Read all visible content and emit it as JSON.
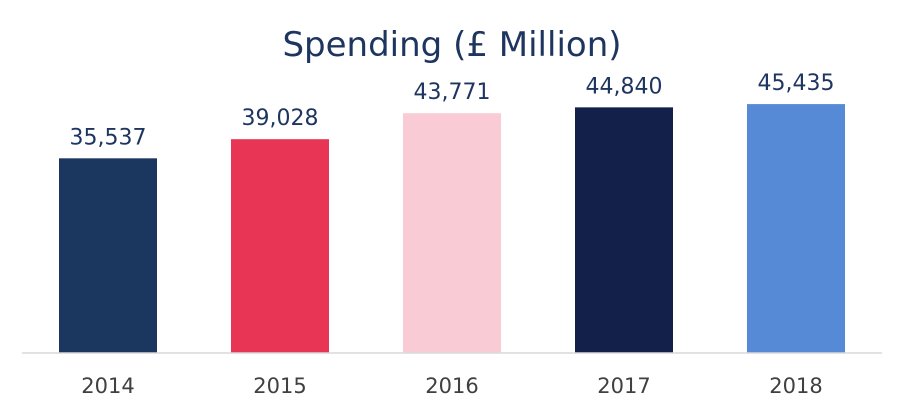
{
  "chart_data": {
    "type": "bar",
    "title": "Spending (£ Million)",
    "categories": [
      "2014",
      "2015",
      "2016",
      "2017",
      "2018"
    ],
    "values": [
      35537,
      39028,
      43771,
      44840,
      45435
    ],
    "data_labels": [
      "35,537",
      "39,028",
      "43,771",
      "44,840",
      "45,435"
    ],
    "colors": [
      "#1b375f",
      "#e83455",
      "#f9ccd5",
      "#13204a",
      "#5689d6"
    ],
    "ylim": [
      0,
      46000
    ],
    "grid": false,
    "legend": "none",
    "axis_color": "#d9d9d9"
  }
}
